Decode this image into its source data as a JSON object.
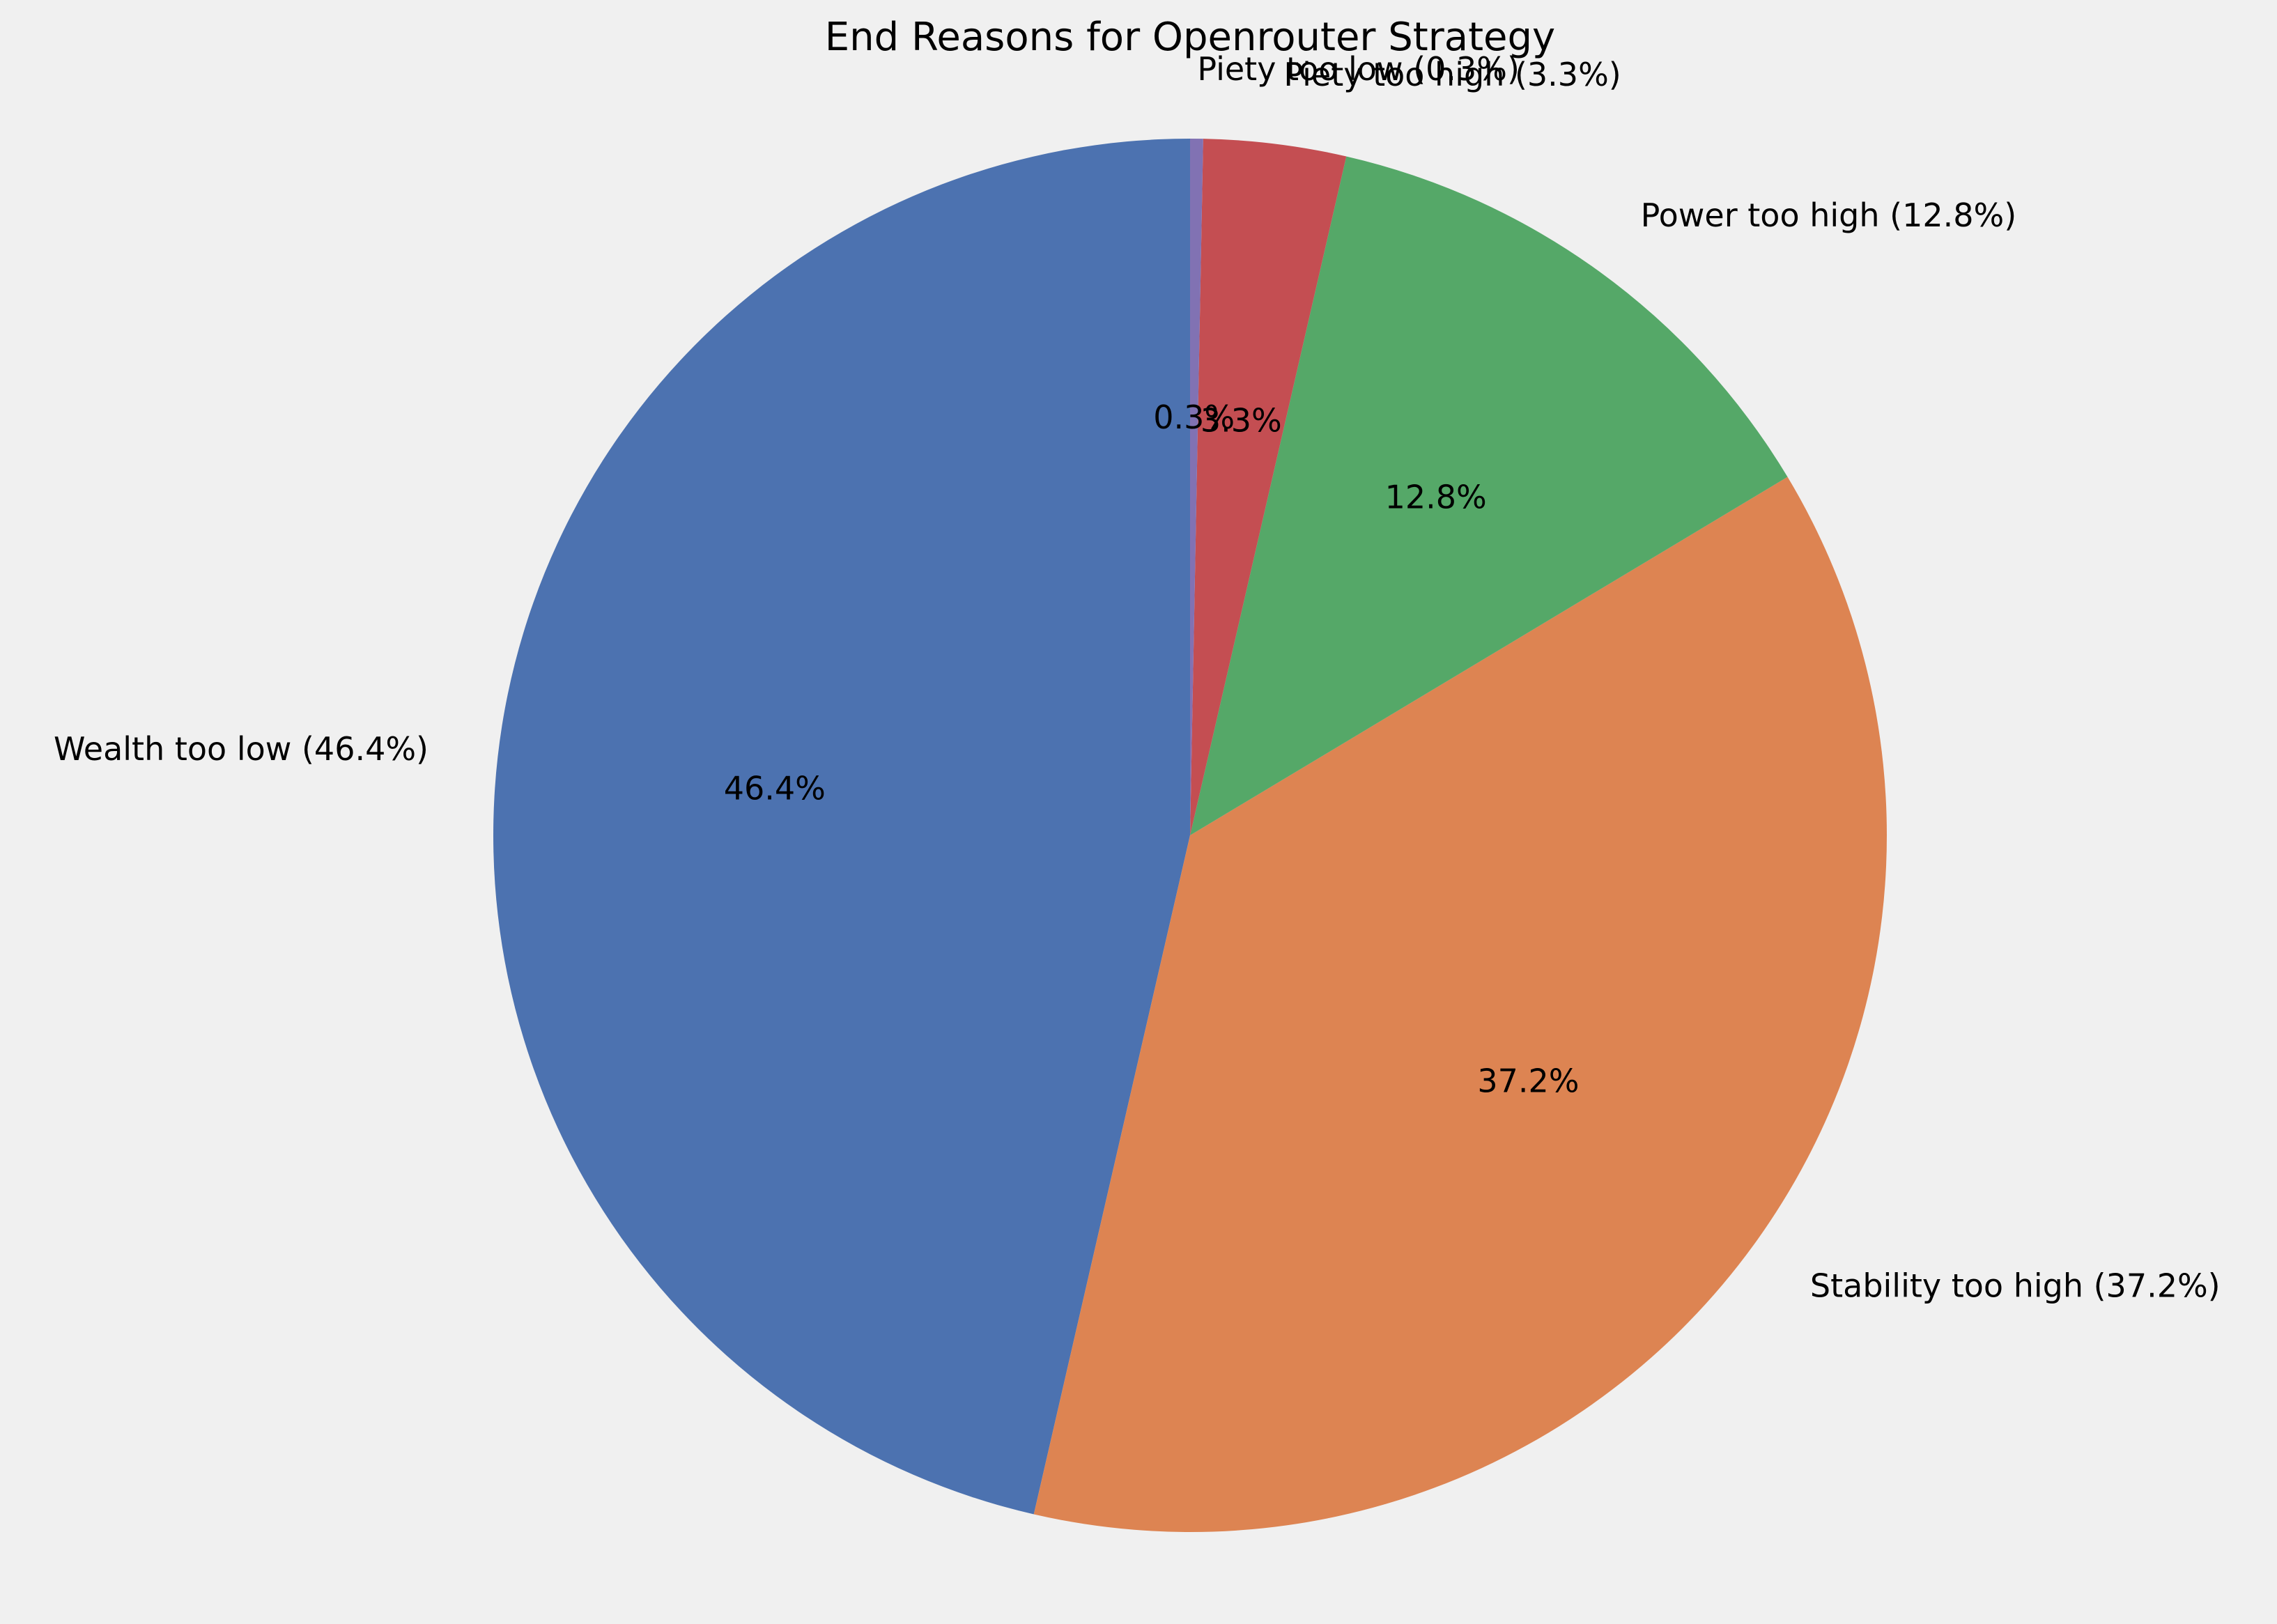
{
  "chart_data": {
    "type": "pie",
    "title": "End Reasons for Openrouter Strategy",
    "start_angle_deg": 90,
    "direction": "counterclockwise",
    "slices": [
      {
        "label": "Wealth too low (46.4%)",
        "value": 46.4,
        "pct_label": "46.4%",
        "color": "#4c72b0"
      },
      {
        "label": "Stability too high (37.2%)",
        "value": 37.2,
        "pct_label": "37.2%",
        "color": "#dd8452"
      },
      {
        "label": "Power too high (12.8%)",
        "value": 12.8,
        "pct_label": "12.8%",
        "color": "#55a868"
      },
      {
        "label": "Piety too high (3.3%)",
        "value": 3.3,
        "pct_label": "3.3%",
        "color": "#c44e52"
      },
      {
        "label": "Piety too low (0.3%)",
        "value": 0.3,
        "pct_label": "0.3%",
        "color": "#8172b3"
      }
    ]
  }
}
